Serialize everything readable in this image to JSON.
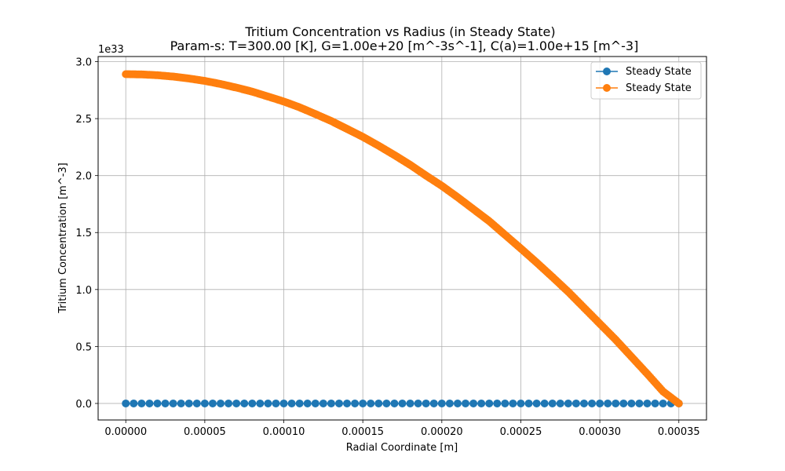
{
  "chart_data": {
    "type": "line",
    "title": "Tritium Concentration vs Radius (in Steady State)",
    "subtitle": "Param-s: T=300.00 [K], G=1.00e+20 [m^-3s^-1], C(a)=1.00e+15 [m^-3]",
    "xlabel": "Radial Coordinate [m]",
    "ylabel": "Tritium Concentration [m^-3]",
    "y_offset_label": "1e33",
    "y_scale_factor": 1e+33,
    "xlim": [
      -1.75e-05,
      0.0003675
    ],
    "ylim": [
      -0.145,
      3.045
    ],
    "x_ticks": [
      0.0,
      5e-05,
      0.0001,
      0.00015,
      0.0002,
      0.00025,
      0.0003,
      0.00035
    ],
    "x_tick_labels": [
      "0.00000",
      "0.00005",
      "0.00010",
      "0.00015",
      "0.00020",
      "0.00025",
      "0.00030",
      "0.00035"
    ],
    "y_ticks": [
      0.0,
      0.5,
      1.0,
      1.5,
      2.0,
      2.5,
      3.0
    ],
    "y_tick_labels": [
      "0.0",
      "0.5",
      "1.0",
      "1.5",
      "2.0",
      "2.5",
      "3.0"
    ],
    "grid": true,
    "legend": "top-right",
    "series": [
      {
        "name": "Steady State",
        "color": "#1f77b4",
        "marker": "circle",
        "x": [
          0.0,
          5e-05,
          0.0001,
          0.00015,
          0.0002,
          0.00025,
          0.0003,
          0.00035
        ],
        "y": [
          0.0,
          0.0,
          0.0,
          0.0,
          0.0,
          0.0,
          0.0,
          0.0
        ]
      },
      {
        "name": "Steady State",
        "color": "#ff7f0e",
        "marker": "circle",
        "x": [
          0.0,
          1e-05,
          2e-05,
          3e-05,
          4e-05,
          5e-05,
          6e-05,
          7e-05,
          8e-05,
          9e-05,
          0.0001,
          0.00011,
          0.00012,
          0.00013,
          0.00014,
          0.00015,
          0.00016,
          0.00017,
          0.00018,
          0.00019,
          0.0002,
          0.00021,
          0.00022,
          0.00023,
          0.00024,
          0.00025,
          0.00026,
          0.00027,
          0.00028,
          0.00029,
          0.0003,
          0.00031,
          0.00032,
          0.00033,
          0.00034,
          0.00035
        ],
        "y": [
          2.89,
          2.888,
          2.881,
          2.869,
          2.852,
          2.831,
          2.804,
          2.772,
          2.737,
          2.694,
          2.65,
          2.599,
          2.54,
          2.479,
          2.41,
          2.34,
          2.262,
          2.18,
          2.094,
          2.0,
          1.91,
          1.81,
          1.705,
          1.6,
          1.48,
          1.36,
          1.237,
          1.11,
          0.98,
          0.84,
          0.7,
          0.56,
          0.41,
          0.26,
          0.105,
          0.0
        ]
      }
    ]
  }
}
